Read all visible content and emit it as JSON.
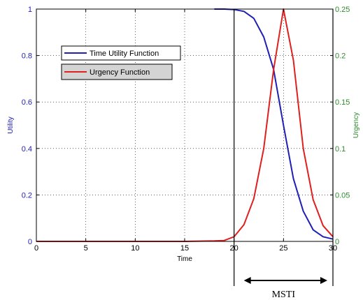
{
  "chart_data": {
    "type": "line",
    "xlabel": "Time",
    "ylabel_left": "Utility",
    "ylabel_right": "Urgency",
    "xlim": [
      0,
      30
    ],
    "ylim_left": [
      0,
      1
    ],
    "ylim_right": [
      0,
      0.25
    ],
    "x_ticks": [
      "0",
      "5",
      "10",
      "15",
      "20",
      "25",
      "30"
    ],
    "y_left_ticks": [
      "0",
      "0.2",
      "0.4",
      "0.6",
      "0.8",
      "1"
    ],
    "y_right_ticks": [
      "0",
      "0.05",
      "0.1",
      "0.15",
      "0.2",
      "0.25"
    ],
    "grid": true,
    "legend_position": "top-left",
    "series": [
      {
        "name": "Time Utility Function",
        "axis": "left",
        "color": "#1f1fb4",
        "x": [
          18,
          19,
          20,
          21,
          22,
          23,
          24,
          25,
          26,
          27,
          28,
          29,
          30
        ],
        "y": [
          1.0,
          1.0,
          0.998,
          0.99,
          0.96,
          0.88,
          0.74,
          0.5,
          0.27,
          0.13,
          0.05,
          0.02,
          0.01
        ]
      },
      {
        "name": "Urgency Function",
        "axis": "right",
        "color": "#e01f1f",
        "x": [
          0,
          5,
          10,
          15,
          18,
          19,
          20,
          21,
          22,
          23,
          24,
          25,
          26,
          27,
          28,
          29,
          30
        ],
        "y": [
          0,
          0,
          0,
          0,
          0.0005,
          0.001,
          0.005,
          0.018,
          0.046,
          0.1,
          0.185,
          0.25,
          0.195,
          0.1,
          0.045,
          0.017,
          0.005
        ]
      }
    ],
    "annotation": {
      "label": "MSTI",
      "from_x": 20,
      "to_x": 30,
      "color": "#000000"
    },
    "colors": {
      "left_axis": "#1f1fb4",
      "right_axis": "#2e8b2e",
      "axes": "#000000"
    }
  }
}
